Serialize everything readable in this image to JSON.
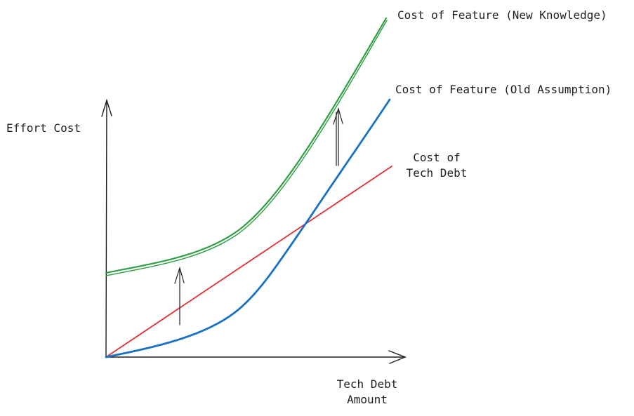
{
  "axes": {
    "y_label": "Effort Cost",
    "x_label_line1": "Tech Debt",
    "x_label_line2": "Amount"
  },
  "curves": {
    "new_knowledge": {
      "label": "Cost of Feature (New Knowledge)",
      "color": "#2f9e44"
    },
    "old_assumption": {
      "label": "Cost of Feature (Old Assumption)",
      "color": "#1971c2"
    },
    "tech_debt": {
      "label_line1": "Cost of",
      "label_line2": "Tech Debt",
      "color": "#e03131"
    }
  },
  "ink_color": "#1e1e1e"
}
